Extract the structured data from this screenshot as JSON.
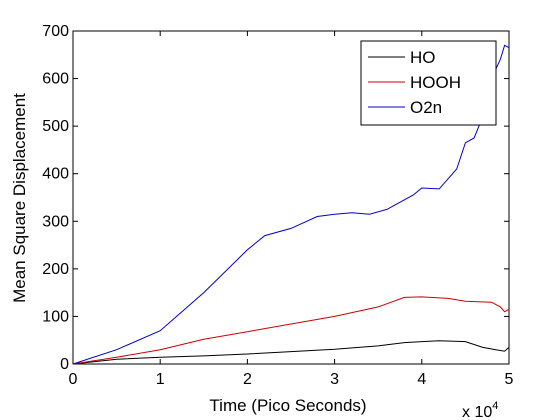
{
  "chart_data": {
    "type": "line",
    "xlabel": "Time (Pico Seconds)",
    "ylabel": "Mean Square Displacement",
    "x_multiplier": "x 10",
    "x_multiplier_exp": "4",
    "xlim": [
      0,
      5
    ],
    "ylim": [
      0,
      700
    ],
    "xticks": [
      "0",
      "1",
      "2",
      "3",
      "4",
      "5"
    ],
    "yticks": [
      "0",
      "100",
      "200",
      "300",
      "400",
      "500",
      "600",
      "700"
    ],
    "legend_position": "top-right",
    "grid": false,
    "series": [
      {
        "name": "HO",
        "color": "#000000",
        "x": [
          0,
          0.5,
          1.0,
          1.5,
          2.0,
          2.5,
          3.0,
          3.5,
          3.8,
          4.0,
          4.2,
          4.5,
          4.7,
          4.85,
          4.95,
          5.0
        ],
        "y": [
          0,
          10,
          14,
          17,
          21,
          26,
          31,
          38,
          45,
          47,
          49,
          47,
          35,
          30,
          27,
          35
        ]
      },
      {
        "name": "HOOH",
        "color": "#cc0000",
        "x": [
          0,
          0.5,
          1.0,
          1.5,
          2.0,
          2.5,
          3.0,
          3.5,
          3.8,
          4.0,
          4.3,
          4.5,
          4.8,
          4.9,
          4.95,
          5.0
        ],
        "y": [
          0,
          14,
          30,
          52,
          68,
          84,
          100,
          120,
          140,
          141,
          138,
          132,
          130,
          120,
          110,
          115
        ]
      },
      {
        "name": "O2n",
        "color": "#0000cc",
        "x": [
          0,
          0.5,
          1.0,
          1.5,
          2.0,
          2.2,
          2.5,
          2.8,
          3.0,
          3.2,
          3.4,
          3.6,
          3.9,
          4.0,
          4.2,
          4.4,
          4.5,
          4.6,
          4.7,
          4.8,
          4.9,
          4.95,
          5.0
        ],
        "y": [
          0,
          30,
          70,
          150,
          240,
          270,
          285,
          310,
          315,
          318,
          315,
          325,
          355,
          370,
          368,
          410,
          465,
          475,
          520,
          600,
          640,
          670,
          665
        ]
      }
    ]
  }
}
